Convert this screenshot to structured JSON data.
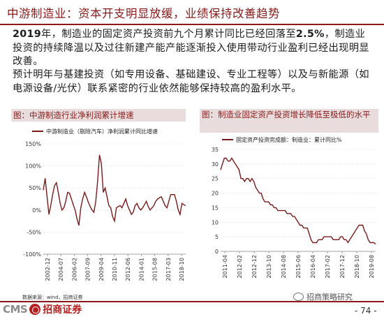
{
  "header": {
    "title": "中游制造业：资本开支明显放缓，业绩保持改善趋势"
  },
  "body": {
    "p1_year": "2019",
    "p1_a": "年，制造业的固定资产投资前九个月累计同比已经回落至",
    "p1_pct": "2.5%",
    "p1_b": "，制造业投资的持续降温以及过往新建产能产能逐渐投入使用带动行业盈利已经出现明显改善。",
    "p2": "预计明年与基建投资（如专用设备、基础建设、专业工程等）以及与新能源（如电源设备/光伏）联系紧密的行业依然能够保持较高的盈利水平。"
  },
  "charts": [
    {
      "panel_title": "图：中游制造行业净利润累计增速",
      "legend": "中游制造业（剔除汽车）净利润累计同比增速",
      "color": "#7a1a1a"
    },
    {
      "panel_title": "图：制造业固定资产投资增长降低至极低的水平",
      "legend": "固定资产投资完成额：制造业：累计同比%",
      "color": "#7a1a1a"
    }
  ],
  "chart_data": [
    {
      "type": "line",
      "title": "中游制造行业净利润累计增速",
      "series": [
        {
          "name": "中游制造业（剔除汽车）净利润累计同比增速",
          "values": [
            45,
            72,
            30,
            -10,
            10,
            35,
            55,
            62,
            40,
            15,
            0,
            5,
            20,
            40,
            38,
            25,
            12,
            0,
            -20,
            -35,
            5,
            25,
            40,
            30,
            18,
            8,
            0,
            -5,
            20,
            65,
            125,
            105,
            40,
            50,
            30,
            10,
            5,
            -15,
            -25,
            5,
            8,
            10,
            5,
            15,
            25,
            10,
            0,
            -10,
            -5,
            10,
            15,
            5,
            0,
            5,
            12,
            20,
            8,
            0,
            5,
            10,
            20,
            25,
            28,
            30,
            20,
            10,
            5,
            20,
            35,
            35,
            35,
            20,
            0,
            -10,
            15,
            12,
            10
          ]
        }
      ],
      "x_range": [
        "2002-01",
        "2019-09"
      ],
      "xlabel": "",
      "ylabel": "",
      "ylim": [
        -100,
        150
      ],
      "yticks": [
        -100,
        -50,
        0,
        50,
        100,
        150
      ],
      "ytick_labels": [
        "-100%",
        "-50%",
        "0%",
        "50%",
        "100%",
        "150%"
      ],
      "xticks": [
        "2002-12",
        "2004-07",
        "2006-02",
        "2007-09",
        "2009-04",
        "2010-11",
        "2012-06",
        "2014-01",
        "2015-08",
        "2017-03",
        "2018-10"
      ],
      "grid": true
    },
    {
      "type": "line",
      "title": "制造业固定资产投资增长降低至极低的水平",
      "series": [
        {
          "name": "固定资产投资完成额：制造业：累计同比%",
          "values": [
            28,
            30,
            32,
            32,
            31,
            31,
            32,
            31,
            30,
            29,
            28,
            25,
            25,
            24,
            25,
            25,
            24,
            25,
            24,
            22,
            21,
            20,
            20,
            18,
            17,
            17,
            17,
            16,
            16,
            15,
            15,
            14,
            14,
            14,
            14,
            14,
            13,
            13,
            13,
            12,
            12,
            11,
            10,
            9,
            9,
            8,
            8,
            8,
            6,
            4,
            3,
            3,
            3,
            4,
            4,
            4,
            5,
            5,
            5,
            5,
            5,
            4,
            4,
            4,
            4,
            5,
            5,
            4,
            4,
            3,
            4,
            5,
            6,
            7,
            8,
            9,
            9,
            9,
            7,
            6,
            4,
            3,
            3,
            3,
            2.5
          ]
        }
      ],
      "x_range": [
        "2011-02",
        "2019-09"
      ],
      "xlabel": "",
      "ylabel": "",
      "ylim": [
        0,
        35
      ],
      "yticks": [
        0,
        5,
        10,
        15,
        20,
        25,
        30,
        35
      ],
      "xticks": [
        "2011-04",
        "2012-02",
        "2012-12",
        "2013-10",
        "2014-08",
        "2015-06",
        "2016-04",
        "2017-02",
        "2017-12",
        "2018-10",
        "2019-08"
      ],
      "grid": true
    }
  ],
  "footer": {
    "source": "数据来源：wind，招商证券",
    "logo_cms": "CMS",
    "logo_cn": "招商证券",
    "watermark": "招商策略研究",
    "page": "- 74 -"
  }
}
